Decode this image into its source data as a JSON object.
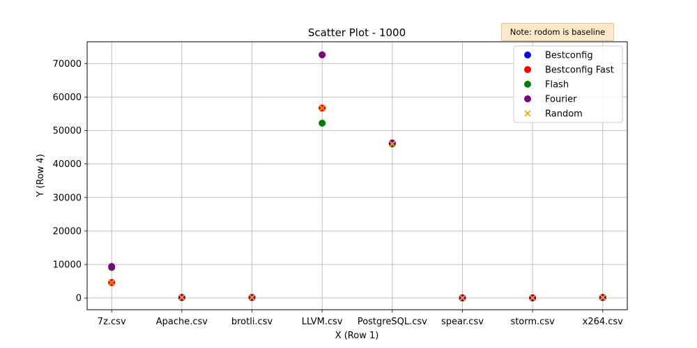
{
  "chart_data": {
    "type": "scatter",
    "title": "Scatter Plot - 1000",
    "xlabel": "X (Row 1)",
    "ylabel": "Y (Row 4)",
    "categories": [
      "7z.csv",
      "Apache.csv",
      "brotli.csv",
      "LLVM.csv",
      "PostgreSQL.csv",
      "spear.csv",
      "storm.csv",
      "x264.csv"
    ],
    "ylim": [
      -3500,
      76500
    ],
    "yticks": [
      0,
      10000,
      20000,
      30000,
      40000,
      50000,
      60000,
      70000
    ],
    "grid": true,
    "legend_position": "top-right",
    "annotation": "Note: rodom is baseline",
    "series": [
      {
        "name": "Bestconfig",
        "color": "#0000ff",
        "marker": "circle",
        "values": [
          4600,
          150,
          150,
          56700,
          46200,
          30,
          30,
          150
        ]
      },
      {
        "name": "Bestconfig Fast",
        "color": "#ff0000",
        "marker": "circle",
        "values": [
          4600,
          150,
          150,
          56700,
          46200,
          30,
          30,
          150
        ]
      },
      {
        "name": "Flash",
        "color": "#008000",
        "marker": "circle",
        "values": [
          9100,
          150,
          150,
          52200,
          46000,
          30,
          30,
          150
        ]
      },
      {
        "name": "Fourier",
        "color": "#800080",
        "marker": "circle",
        "values": [
          9400,
          150,
          150,
          72600,
          46300,
          30,
          30,
          150
        ]
      },
      {
        "name": "Random",
        "color": "#ffa500",
        "marker": "x",
        "values": [
          4600,
          150,
          150,
          56700,
          46000,
          30,
          30,
          150
        ]
      }
    ]
  }
}
